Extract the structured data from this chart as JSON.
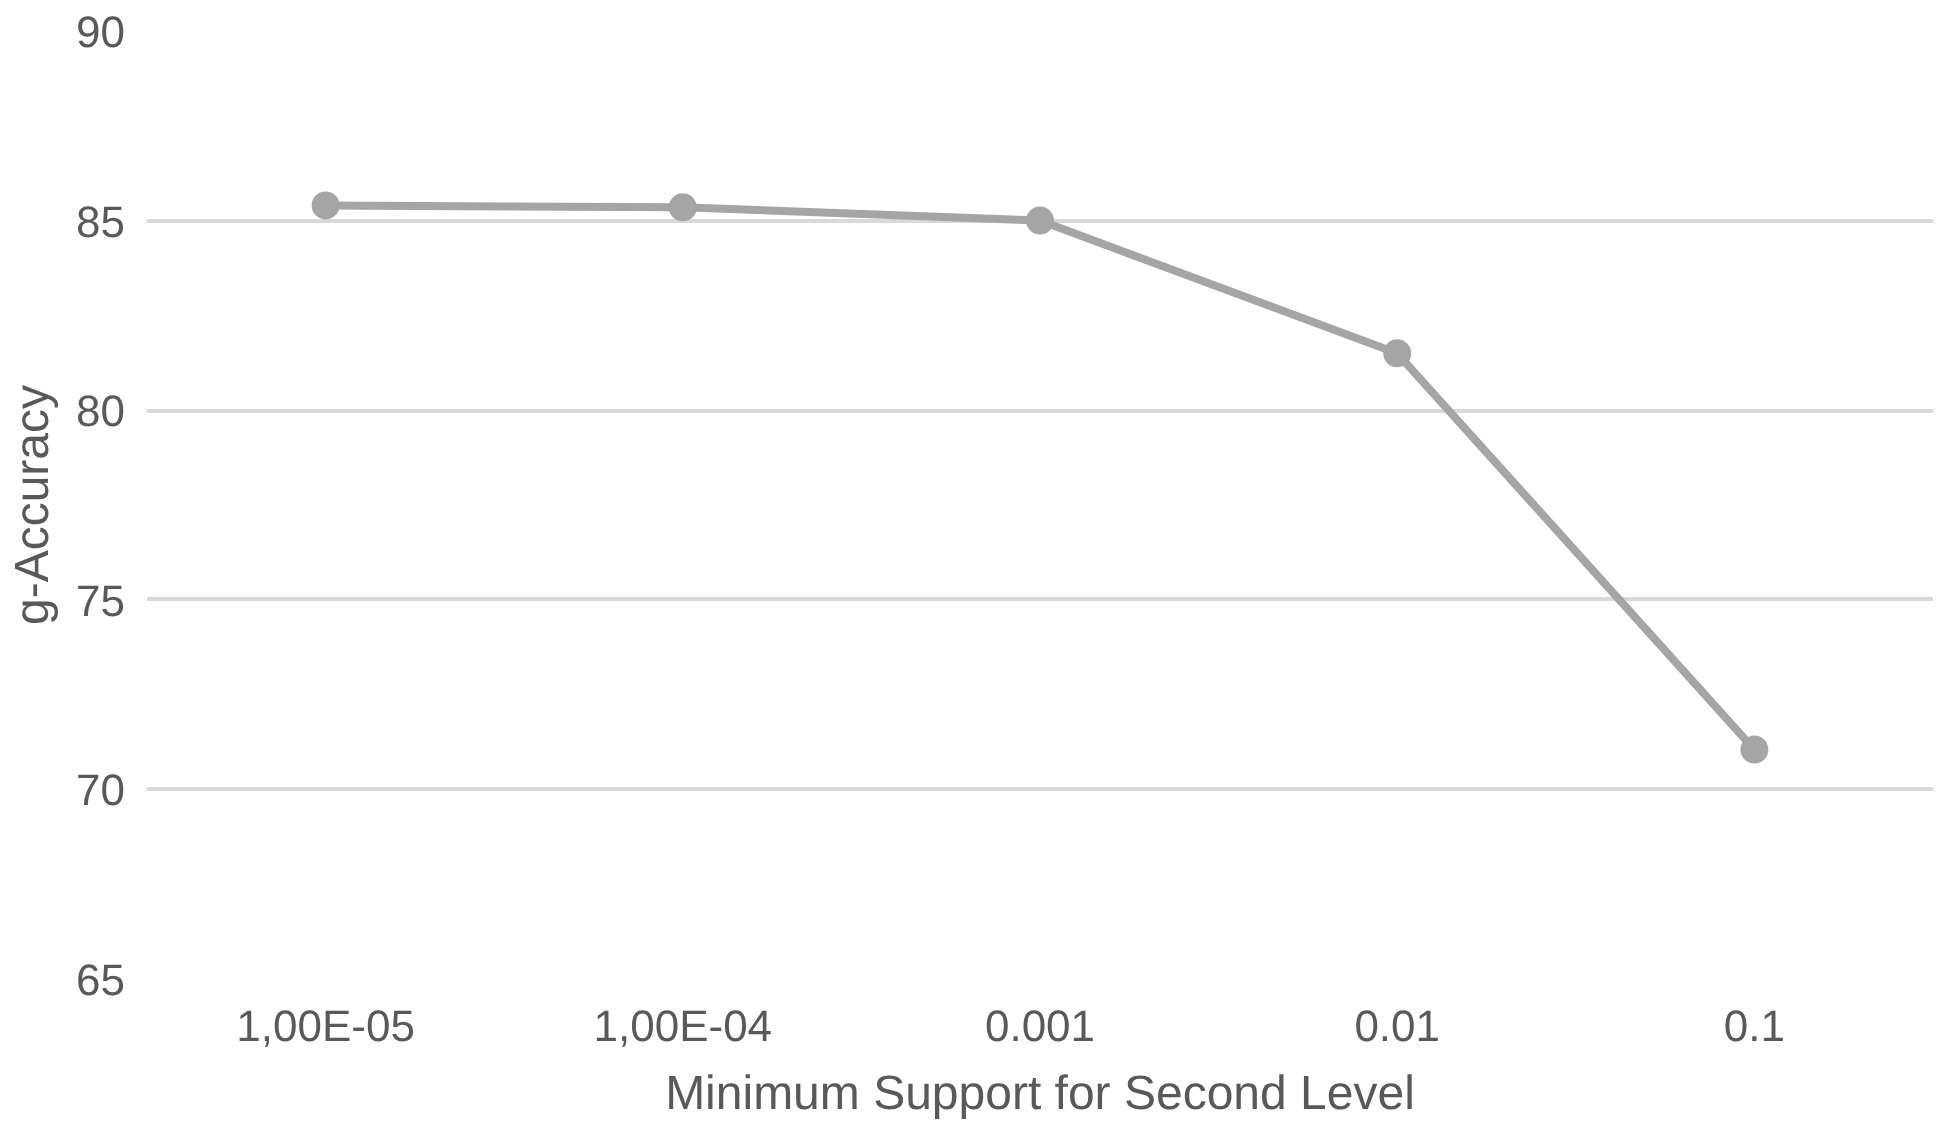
{
  "chart_data": {
    "type": "line",
    "xlabel": "Minimum Support for Second Level",
    "ylabel": "g-Accuracy",
    "categories": [
      "1,00E-05",
      "1,00E-04",
      "0.001",
      "0.01",
      "0.1"
    ],
    "series": [
      {
        "color": "#a5a5a5",
        "values": [
          85.4,
          85.35,
          85.0,
          81.5,
          71.05
        ]
      }
    ],
    "ylim": [
      65,
      90
    ],
    "yticks": [
      65,
      70,
      75,
      80,
      85,
      90
    ],
    "grid": "y",
    "marker": "circle",
    "line_style": "solid"
  }
}
